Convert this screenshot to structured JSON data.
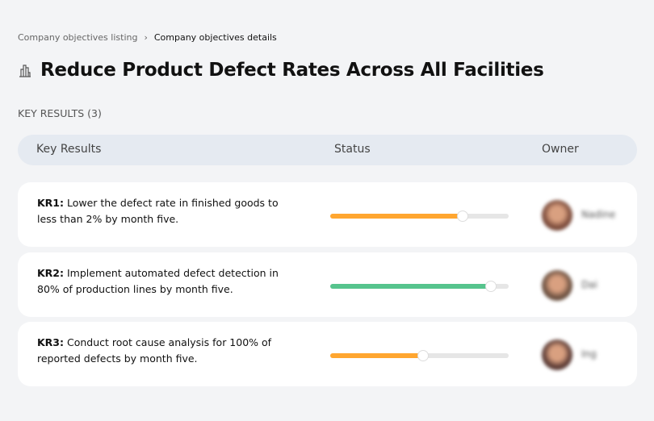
{
  "breadcrumb": {
    "parent": "Company objectives listing",
    "separator": "›",
    "current": "Company objectives details"
  },
  "title": "Reduce Product Defect Rates Across All Facilities",
  "key_results_label": "KEY RESULTS (3)",
  "table": {
    "headers": [
      "Key Results",
      "Status",
      "Owner"
    ]
  },
  "colors": {
    "orange": "#ffa630",
    "green": "#56c48d"
  },
  "rows": [
    {
      "id": "KR1:",
      "text": " Lower the defect rate in finished goods to less than 2% by month five.",
      "progress": 74,
      "color": "#ffa630",
      "owner": "Nadine",
      "avatar": "#7a4a3a"
    },
    {
      "id": "KR2:",
      "text": " Implement automated defect detection in 80% of production lines by month five.",
      "progress": 90,
      "color": "#56c48d",
      "owner": "Dai",
      "avatar": "#6b5040"
    },
    {
      "id": "KR3:",
      "text": " Conduct root cause analysis for 100% of reported defects by month five.",
      "progress": 52,
      "color": "#ffa630",
      "owner": "Ing",
      "avatar": "#5a3a34"
    }
  ]
}
